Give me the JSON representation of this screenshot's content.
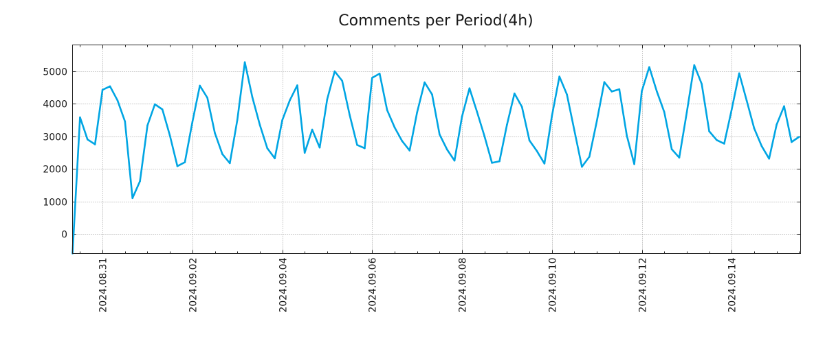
{
  "chart_data": {
    "type": "line",
    "title": "Comments per Period(4h)",
    "xlabel": "",
    "ylabel": "",
    "line_color": "#00a5e3",
    "grid": true,
    "x_start": "2024.08.30 08:00",
    "x_step_hours": 4,
    "xlim_days_from_start": [
      0,
      16.2
    ],
    "ylim": [
      -600,
      5800
    ],
    "yticks": [
      0,
      1000,
      2000,
      3000,
      4000,
      5000
    ],
    "ytick_labels": [
      "0",
      "1000",
      "2000",
      "3000",
      "4000",
      "5000"
    ],
    "xticks_days_from_start": [
      0.667,
      2.667,
      4.667,
      6.667,
      8.667,
      10.667,
      12.667,
      14.667
    ],
    "xtick_labels": [
      "2024.08.31",
      "2024.09.02",
      "2024.09.04",
      "2024.09.06",
      "2024.09.08",
      "2024.09.10",
      "2024.09.12",
      "2024.09.14"
    ],
    "series": [
      {
        "name": "comments",
        "values": [
          -600,
          3580,
          2900,
          2750,
          4420,
          4530,
          4100,
          3450,
          1100,
          1620,
          3330,
          3980,
          3820,
          3020,
          2080,
          2200,
          3430,
          4550,
          4180,
          3100,
          2450,
          2170,
          3500,
          5270,
          4200,
          3350,
          2630,
          2320,
          3490,
          4100,
          4560,
          2490,
          3200,
          2650,
          4130,
          4990,
          4700,
          3650,
          2730,
          2630,
          4790,
          4920,
          3800,
          3270,
          2850,
          2560,
          3730,
          4650,
          4280,
          3050,
          2590,
          2250,
          3600,
          4470,
          3750,
          3000,
          2180,
          2230,
          3350,
          4310,
          3900,
          2870,
          2540,
          2160,
          3620,
          4830,
          4280,
          3170,
          2060,
          2370,
          3470,
          4660,
          4370,
          4440,
          3020,
          2140,
          4380,
          5120,
          4380,
          3740,
          2600,
          2340,
          3720,
          5180,
          4600,
          3150,
          2880,
          2770,
          3820,
          4930,
          4090,
          3240,
          2700,
          2310,
          3350,
          3920,
          2820,
          2980
        ]
      }
    ]
  }
}
